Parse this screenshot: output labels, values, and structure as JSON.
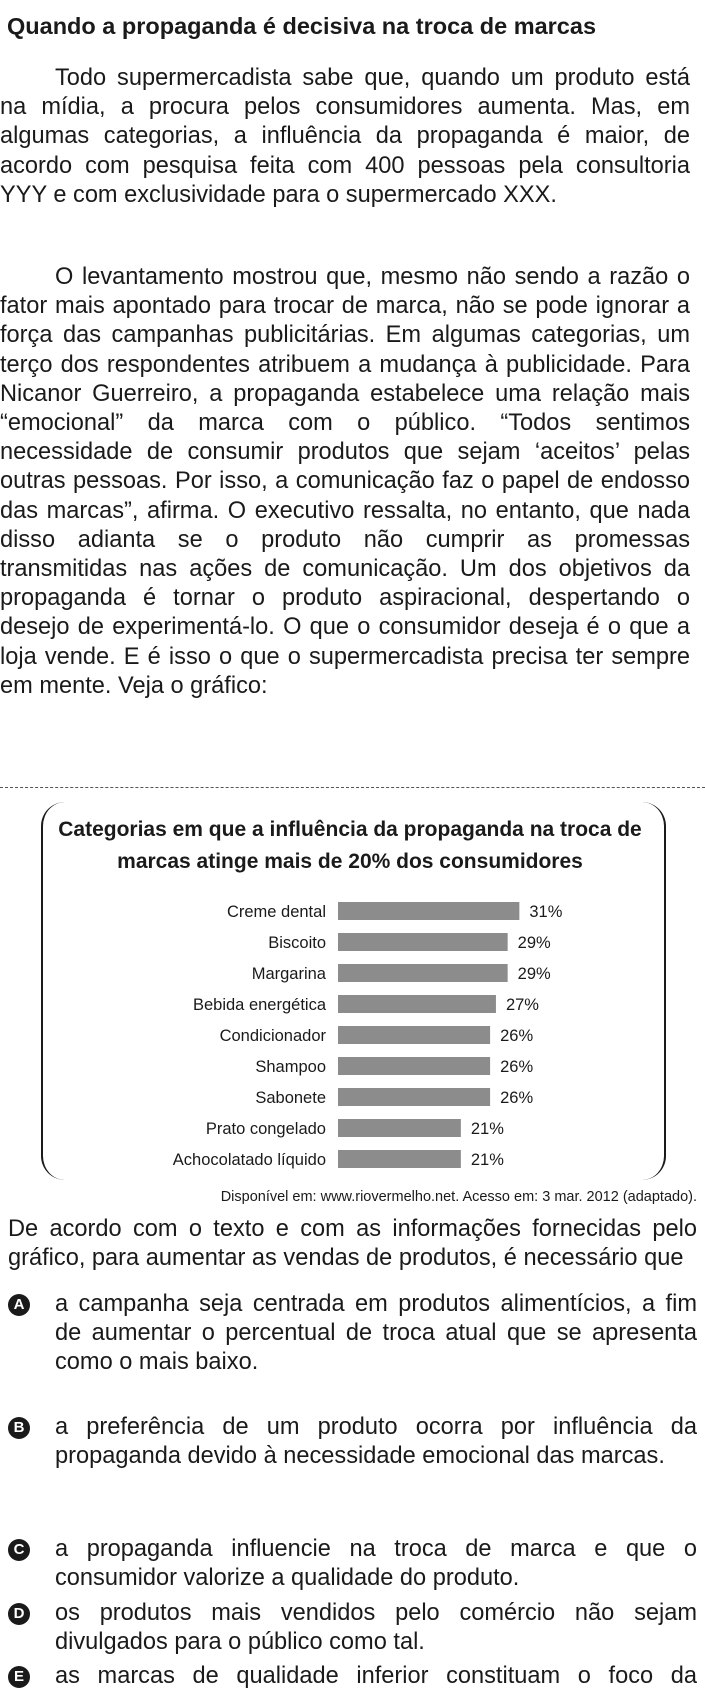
{
  "title": "Quando a propaganda é decisiva na troca de marcas",
  "paragraphs": [
    "Todo supermercadista sabe que, quando um produto está na mídia, a procura pelos consumidores aumenta. Mas, em algumas categorias, a influência da propaganda é maior, de acordo com pesquisa feita com 400 pessoas pela consultoria YYY e com exclusividade para o supermercado XXX.",
    "O levantamento mostrou que, mesmo não sendo a razão o fator mais apontado para trocar de marca, não se pode ignorar a força das campanhas publicitárias. Em algumas categorias, um terço dos respondentes atribuem a mudança à publicidade. Para Nicanor Guerreiro, a propaganda estabelece uma relação mais “emocional” da marca com o público. “Todos sentimos necessidade de consumir produtos que sejam ‘aceitos’ pelas outras pessoas. Por isso, a comunicação faz o papel de endosso das marcas”, afirma. O executivo ressalta, no entanto, que nada disso adianta se o produto não cumprir as promessas transmitidas nas ações de comunicação. Um dos objetivos da propaganda é tornar o produto aspiracional, despertando o desejo de experimentá-lo. O que o consumidor deseja é o que a loja vende. E é isso o que o supermercadista precisa ter sempre em mente. Veja o gráfico:"
  ],
  "chart_data": {
    "type": "bar",
    "orientation": "horizontal",
    "title": "Categorias em que a influência da propaganda na troca de marcas atinge mais de 20% dos consumidores",
    "categories": [
      "Creme dental",
      "Biscoito",
      "Margarina",
      "Bebida energética",
      "Condicionador",
      "Shampoo",
      "Sabonete",
      "Prato congelado",
      "Achocolatado líquido"
    ],
    "values": [
      31,
      29,
      29,
      27,
      26,
      26,
      26,
      21,
      21
    ],
    "value_labels": [
      "31%",
      "29%",
      "29%",
      "27%",
      "26%",
      "26%",
      "26%",
      "21%",
      "21%"
    ],
    "bar_color": "#8c8c8c",
    "grid": false
  },
  "source": "Disponível em: www.riovermelho.net. Acesso em: 3 mar. 2012 (adaptado).",
  "question": "De acordo com o texto e com as informações fornecidas pelo gráfico, para aumentar as vendas de produtos, é necessário que",
  "options": [
    {
      "letter": "A",
      "text": "a campanha seja centrada em produtos alimentícios, a fim de aumentar o percentual de troca atual que se apresenta como o mais baixo."
    },
    {
      "letter": "B",
      "text": "a preferência de um produto ocorra por influência da propaganda devido à necessidade emocional das marcas."
    },
    {
      "letter": "C",
      "text": "a propaganda influencie na troca de marca e que o consumidor valorize a qualidade do produto."
    },
    {
      "letter": "D",
      "text": "os produtos mais vendidos pelo comércio não sejam divulgados para o público como tal."
    },
    {
      "letter": "E",
      "text": "as marcas de qualidade inferior constituam o foco da publicidade por serem mais econômicas."
    }
  ]
}
